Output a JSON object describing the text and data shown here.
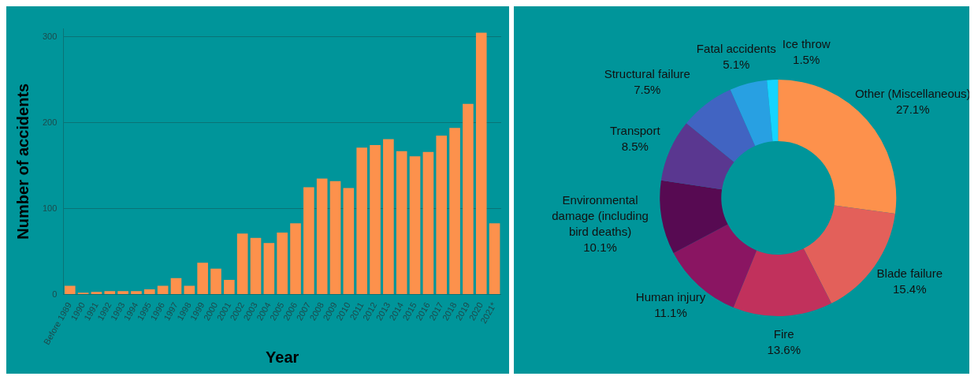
{
  "chart_data": [
    {
      "type": "bar",
      "xlabel": "Year",
      "ylabel": "Number of accidents",
      "categories": [
        "Before 1989",
        "1990",
        "1991",
        "1992",
        "1993",
        "1994",
        "1995",
        "1996",
        "1997",
        "1998",
        "1999",
        "2000",
        "2001",
        "2002",
        "2003",
        "2004",
        "2005",
        "2006",
        "2007",
        "2008",
        "2009",
        "2010",
        "2011",
        "2012",
        "2013",
        "2014",
        "2015",
        "2016",
        "2017",
        "2018",
        "2019",
        "2020",
        "2021*"
      ],
      "values": [
        10,
        2,
        3,
        4,
        4,
        4,
        6,
        10,
        19,
        10,
        37,
        30,
        17,
        71,
        66,
        60,
        72,
        83,
        125,
        135,
        132,
        124,
        171,
        174,
        181,
        167,
        161,
        166,
        185,
        194,
        222,
        305,
        83
      ],
      "color": "#fd914c",
      "ylim": [
        0,
        310
      ],
      "yticks": [
        0,
        100,
        200,
        300
      ],
      "grid": "y",
      "legend": false
    },
    {
      "type": "donut",
      "categories": [
        "Other (Miscellaneous)",
        "Blade failure",
        "Fire",
        "Human injury",
        "Environmental damage (including bird deaths)",
        "Transport",
        "Structural failure",
        "Fatal accidents",
        "Ice throw"
      ],
      "values": [
        27.1,
        15.4,
        13.6,
        11.1,
        10.1,
        8.5,
        7.5,
        5.1,
        1.5
      ],
      "value_labels": [
        "27.1%",
        "15.4%",
        "13.6%",
        "11.1%",
        "10.1%",
        "8.5%",
        "7.5%",
        "5.1%",
        "1.5%"
      ],
      "colors": [
        "#fd914c",
        "#e3605a",
        "#c1315c",
        "#8a1562",
        "#570a52",
        "#5a3790",
        "#4164c2",
        "#28a0e2",
        "#16d4ff"
      ],
      "legend": false
    }
  ]
}
